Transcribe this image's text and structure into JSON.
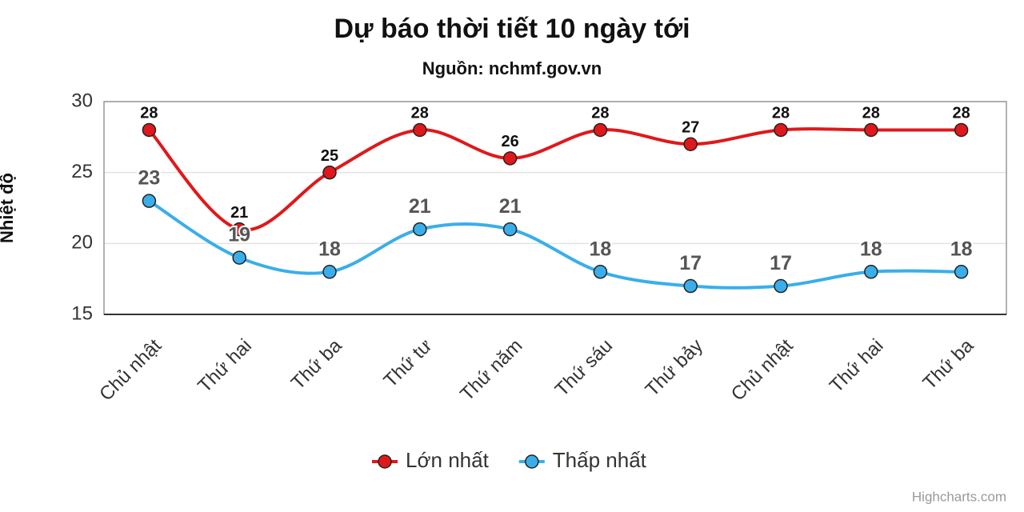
{
  "chart_data": {
    "type": "line",
    "title": "Dự báo thời tiết 10 ngày tới",
    "subtitle": "Nguồn: nchmf.gov.vn",
    "y_axis_label": "Nhiệt độ",
    "categories": [
      "Chủ nhật",
      "Thứ hai",
      "Thứ ba",
      "Thứ tư",
      "Thứ năm",
      "Thứ sáu",
      "Thứ bảy",
      "Chủ nhật",
      "Thứ hai",
      "Thứ ba"
    ],
    "series": [
      {
        "name": "Lớn nhất",
        "color": "#e0181b",
        "values": [
          28,
          21,
          25,
          28,
          26,
          28,
          27,
          28,
          28,
          28
        ]
      },
      {
        "name": "Thấp nhất",
        "color": "#3aaeea",
        "values": [
          23,
          19,
          18,
          21,
          21,
          18,
          17,
          17,
          18,
          18
        ]
      }
    ],
    "ylim": [
      15,
      30
    ],
    "yticks": [
      15,
      20,
      25,
      30
    ],
    "grid": true,
    "smooth": true,
    "legend": "bottom",
    "credits": "Highcharts.com"
  }
}
